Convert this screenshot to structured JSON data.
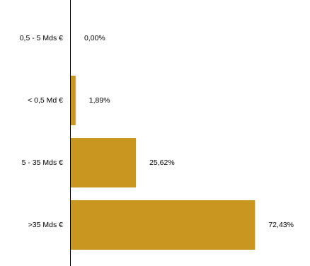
{
  "chart_data": {
    "type": "bar",
    "orientation": "horizontal",
    "categories": [
      "0,5 - 5 Mds €",
      "< 0,5 Md €",
      "5 - 35 Mds €",
      ">35 Mds €"
    ],
    "values": [
      0.0,
      1.89,
      25.62,
      72.43
    ],
    "value_labels": [
      "0,00%",
      "1,89%",
      "25,62%",
      "72,43%"
    ],
    "xlim": [
      0,
      74
    ],
    "grid": false,
    "legend": "none",
    "bar_color": "#C9971F",
    "axis_color": "#000000"
  }
}
